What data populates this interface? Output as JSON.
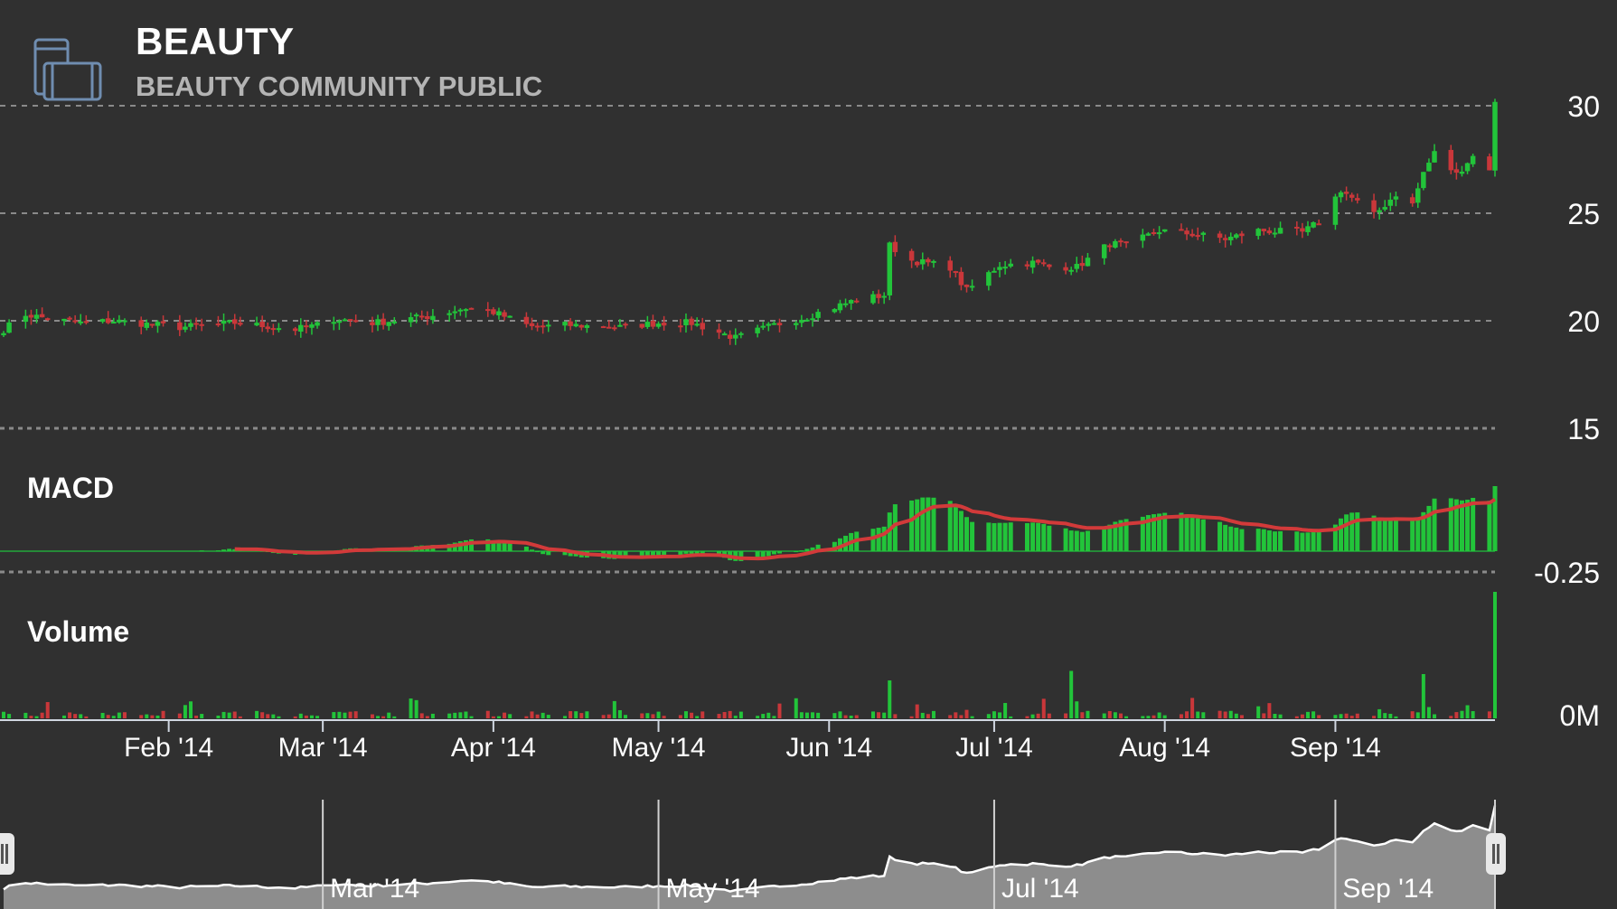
{
  "header": {
    "ticker": "BEAUTY",
    "company": "BEAUTY COMMUNITY PUBLIC",
    "icon": "devices-icon"
  },
  "colors": {
    "background": "#303030",
    "up": "#22c43a",
    "down": "#c9373a",
    "signal": "#d23a3a",
    "grid": "#8a8a8a",
    "navigator_fill": "#8d8d8d",
    "navigator_line": "#ffffff"
  },
  "chart_data": [
    {
      "type": "candlestick",
      "title": "",
      "y_ticks": [
        "30",
        "25",
        "20",
        "15"
      ],
      "ylim": [
        15,
        30.5
      ],
      "grid": true,
      "date_range": [
        "2014-01-02",
        "2014-09-30"
      ],
      "anchors": [
        [
          "2014-01-02",
          19.6
        ],
        [
          "2014-01-06",
          20.3
        ],
        [
          "2014-01-10",
          20.1
        ],
        [
          "2014-01-16",
          19.9
        ],
        [
          "2014-01-22",
          20.0
        ],
        [
          "2014-02-03",
          19.7
        ],
        [
          "2014-02-13",
          19.9
        ],
        [
          "2014-02-24",
          19.6
        ],
        [
          "2014-02-28",
          19.8
        ],
        [
          "2014-03-03",
          20.1
        ],
        [
          "2014-03-10",
          19.9
        ],
        [
          "2014-03-20",
          20.2
        ],
        [
          "2014-03-27",
          20.6
        ],
        [
          "2014-04-01",
          20.4
        ],
        [
          "2014-04-08",
          19.7
        ],
        [
          "2014-04-14",
          19.8
        ],
        [
          "2014-04-24",
          19.7
        ],
        [
          "2014-05-01",
          19.9
        ],
        [
          "2014-05-07",
          19.9
        ],
        [
          "2014-05-15",
          19.2
        ],
        [
          "2014-05-22",
          19.8
        ],
        [
          "2014-05-28",
          20.2
        ],
        [
          "2014-06-05",
          20.9
        ],
        [
          "2014-06-11",
          21.2
        ],
        [
          "2014-06-12",
          23.5
        ],
        [
          "2014-06-16",
          22.8
        ],
        [
          "2014-06-23",
          22.5
        ],
        [
          "2014-06-26",
          21.4
        ],
        [
          "2014-07-02",
          22.6
        ],
        [
          "2014-07-08",
          22.7
        ],
        [
          "2014-07-11",
          22.5
        ],
        [
          "2014-07-16",
          22.5
        ],
        [
          "2014-07-22",
          23.6
        ],
        [
          "2014-07-25",
          23.5
        ],
        [
          "2014-07-31",
          24.2
        ],
        [
          "2014-08-07",
          24.0
        ],
        [
          "2014-08-12",
          23.8
        ],
        [
          "2014-08-18",
          24.2
        ],
        [
          "2014-08-26",
          24.1
        ],
        [
          "2014-08-29",
          24.6
        ],
        [
          "2014-09-02",
          26.1
        ],
        [
          "2014-09-08",
          24.9
        ],
        [
          "2014-09-12",
          25.9
        ],
        [
          "2014-09-15",
          25.4
        ],
        [
          "2014-09-17",
          26.9
        ],
        [
          "2014-09-19",
          27.8
        ],
        [
          "2014-09-23",
          26.8
        ],
        [
          "2014-09-25",
          27.4
        ],
        [
          "2014-09-27",
          27.9
        ],
        [
          "2014-09-29",
          27.1
        ],
        [
          "2014-09-30",
          30.1
        ]
      ]
    },
    {
      "type": "bar",
      "title": "MACD",
      "y_ticks": [
        "-0.25"
      ],
      "ylim": [
        -0.25,
        1.25
      ],
      "series": [
        {
          "type": "bar",
          "values_source": "histogram"
        },
        {
          "type": "line",
          "values_source": "signal"
        }
      ]
    },
    {
      "type": "bar",
      "title": "Volume",
      "y_ticks": [
        "0M"
      ],
      "spikes": [
        [
          "2014-06-12",
          6.0
        ],
        [
          "2014-07-15",
          7.5
        ],
        [
          "2014-09-17",
          7.0
        ],
        [
          "2014-09-30",
          20.0
        ]
      ]
    }
  ],
  "x_axis": {
    "ticks": [
      {
        "date": "2014-02-01",
        "label": "Feb '14"
      },
      {
        "date": "2014-03-01",
        "label": "Mar '14"
      },
      {
        "date": "2014-04-01",
        "label": "Apr '14"
      },
      {
        "date": "2014-05-01",
        "label": "May '14"
      },
      {
        "date": "2014-06-01",
        "label": "Jun '14"
      },
      {
        "date": "2014-07-01",
        "label": "Jul '14"
      },
      {
        "date": "2014-08-01",
        "label": "Aug '14"
      },
      {
        "date": "2014-09-01",
        "label": "Sep '14"
      }
    ]
  },
  "navigator": {
    "ticks": [
      {
        "date": "2014-03-01",
        "label": "Mar '14"
      },
      {
        "date": "2014-05-01",
        "label": "May '14"
      },
      {
        "date": "2014-07-01",
        "label": "Jul '14"
      },
      {
        "date": "2014-09-01",
        "label": "Sep '14"
      }
    ]
  }
}
